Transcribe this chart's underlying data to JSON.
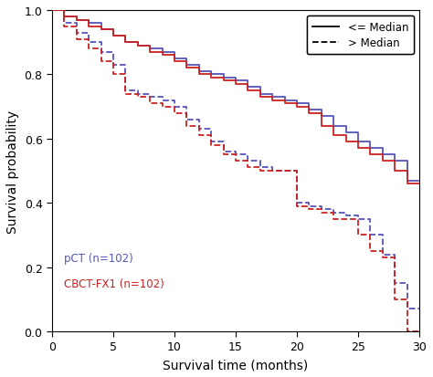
{
  "xlabel": "Survival time (months)",
  "ylabel": "Survival probability",
  "xlim": [
    0,
    30
  ],
  "ylim": [
    0,
    1.0
  ],
  "xticks": [
    0,
    5,
    10,
    15,
    20,
    25,
    30
  ],
  "yticks": [
    0.0,
    0.2,
    0.4,
    0.6,
    0.8,
    1.0
  ],
  "blue_color": "#5555bb",
  "red_color": "#cc2222",
  "legend_label_solid": "<= Median",
  "legend_label_dashed": "> Median",
  "label_pct": "pCT (n=102)",
  "label_cbct": "CBCT-FX1 (n=102)",
  "pct_solid_x": [
    0,
    1,
    1,
    2,
    2,
    3,
    3,
    4,
    4,
    5,
    5,
    6,
    6,
    7,
    7,
    8,
    8,
    9,
    9,
    10,
    10,
    11,
    11,
    12,
    12,
    13,
    13,
    14,
    14,
    15,
    15,
    16,
    16,
    17,
    17,
    18,
    18,
    19,
    19,
    20,
    20,
    21,
    21,
    22,
    22,
    23,
    23,
    24,
    24,
    25,
    25,
    26,
    26,
    27,
    27,
    28,
    28,
    29,
    29,
    30
  ],
  "pct_solid_y": [
    1.0,
    1.0,
    0.98,
    0.98,
    0.97,
    0.97,
    0.96,
    0.96,
    0.94,
    0.94,
    0.92,
    0.92,
    0.9,
    0.9,
    0.89,
    0.89,
    0.88,
    0.88,
    0.87,
    0.87,
    0.85,
    0.85,
    0.83,
    0.83,
    0.81,
    0.81,
    0.8,
    0.8,
    0.79,
    0.79,
    0.78,
    0.78,
    0.76,
    0.76,
    0.74,
    0.74,
    0.73,
    0.73,
    0.72,
    0.72,
    0.71,
    0.71,
    0.69,
    0.69,
    0.67,
    0.67,
    0.64,
    0.64,
    0.62,
    0.62,
    0.59,
    0.59,
    0.57,
    0.57,
    0.55,
    0.55,
    0.53,
    0.53,
    0.47,
    0.47
  ],
  "cbct_solid_x": [
    0,
    1,
    1,
    2,
    2,
    3,
    3,
    4,
    4,
    5,
    5,
    6,
    6,
    7,
    7,
    8,
    8,
    9,
    9,
    10,
    10,
    11,
    11,
    12,
    12,
    13,
    13,
    14,
    14,
    15,
    15,
    16,
    16,
    17,
    17,
    18,
    18,
    19,
    19,
    20,
    20,
    21,
    21,
    22,
    22,
    23,
    23,
    24,
    24,
    25,
    25,
    26,
    26,
    27,
    27,
    28,
    28,
    29,
    29,
    30
  ],
  "cbct_solid_y": [
    1.0,
    1.0,
    0.98,
    0.98,
    0.97,
    0.97,
    0.95,
    0.95,
    0.94,
    0.94,
    0.92,
    0.92,
    0.9,
    0.9,
    0.89,
    0.89,
    0.87,
    0.87,
    0.86,
    0.86,
    0.84,
    0.84,
    0.82,
    0.82,
    0.8,
    0.8,
    0.79,
    0.79,
    0.78,
    0.78,
    0.77,
    0.77,
    0.75,
    0.75,
    0.73,
    0.73,
    0.72,
    0.72,
    0.71,
    0.71,
    0.7,
    0.7,
    0.68,
    0.68,
    0.64,
    0.64,
    0.61,
    0.61,
    0.59,
    0.59,
    0.57,
    0.57,
    0.55,
    0.55,
    0.53,
    0.53,
    0.5,
    0.5,
    0.46,
    0.46
  ],
  "pct_dashed_x": [
    0,
    1,
    1,
    2,
    2,
    3,
    3,
    4,
    4,
    5,
    5,
    6,
    6,
    7,
    7,
    8,
    8,
    9,
    9,
    10,
    10,
    11,
    11,
    12,
    12,
    13,
    13,
    14,
    14,
    15,
    15,
    16,
    16,
    17,
    17,
    18,
    18,
    19,
    19,
    20,
    20,
    21,
    21,
    22,
    22,
    23,
    23,
    24,
    24,
    25,
    25,
    26,
    26,
    27,
    27,
    28,
    28,
    29,
    29,
    30
  ],
  "pct_dashed_y": [
    1.0,
    1.0,
    0.96,
    0.96,
    0.93,
    0.93,
    0.9,
    0.9,
    0.87,
    0.87,
    0.83,
    0.83,
    0.75,
    0.75,
    0.74,
    0.74,
    0.73,
    0.73,
    0.72,
    0.72,
    0.7,
    0.7,
    0.66,
    0.66,
    0.63,
    0.63,
    0.59,
    0.59,
    0.56,
    0.56,
    0.55,
    0.55,
    0.53,
    0.53,
    0.51,
    0.51,
    0.5,
    0.5,
    0.5,
    0.5,
    0.4,
    0.4,
    0.39,
    0.39,
    0.38,
    0.38,
    0.37,
    0.37,
    0.36,
    0.36,
    0.35,
    0.35,
    0.3,
    0.3,
    0.24,
    0.24,
    0.15,
    0.15,
    0.07,
    0.07
  ],
  "cbct_dashed_x": [
    0,
    1,
    1,
    2,
    2,
    3,
    3,
    4,
    4,
    5,
    5,
    6,
    6,
    7,
    7,
    8,
    8,
    9,
    9,
    10,
    10,
    11,
    11,
    12,
    12,
    13,
    13,
    14,
    14,
    15,
    15,
    16,
    16,
    17,
    17,
    18,
    18,
    19,
    19,
    20,
    20,
    21,
    21,
    22,
    22,
    23,
    23,
    24,
    24,
    25,
    25,
    26,
    26,
    27,
    27,
    28,
    28,
    29,
    29,
    30
  ],
  "cbct_dashed_y": [
    1.0,
    1.0,
    0.95,
    0.95,
    0.91,
    0.91,
    0.88,
    0.88,
    0.84,
    0.84,
    0.8,
    0.8,
    0.74,
    0.74,
    0.73,
    0.73,
    0.71,
    0.71,
    0.7,
    0.7,
    0.68,
    0.68,
    0.64,
    0.64,
    0.61,
    0.61,
    0.58,
    0.58,
    0.55,
    0.55,
    0.53,
    0.53,
    0.51,
    0.51,
    0.5,
    0.5,
    0.5,
    0.5,
    0.5,
    0.5,
    0.39,
    0.39,
    0.38,
    0.38,
    0.37,
    0.37,
    0.35,
    0.35,
    0.35,
    0.35,
    0.3,
    0.3,
    0.25,
    0.25,
    0.23,
    0.23,
    0.1,
    0.1,
    0.0,
    0.0
  ]
}
